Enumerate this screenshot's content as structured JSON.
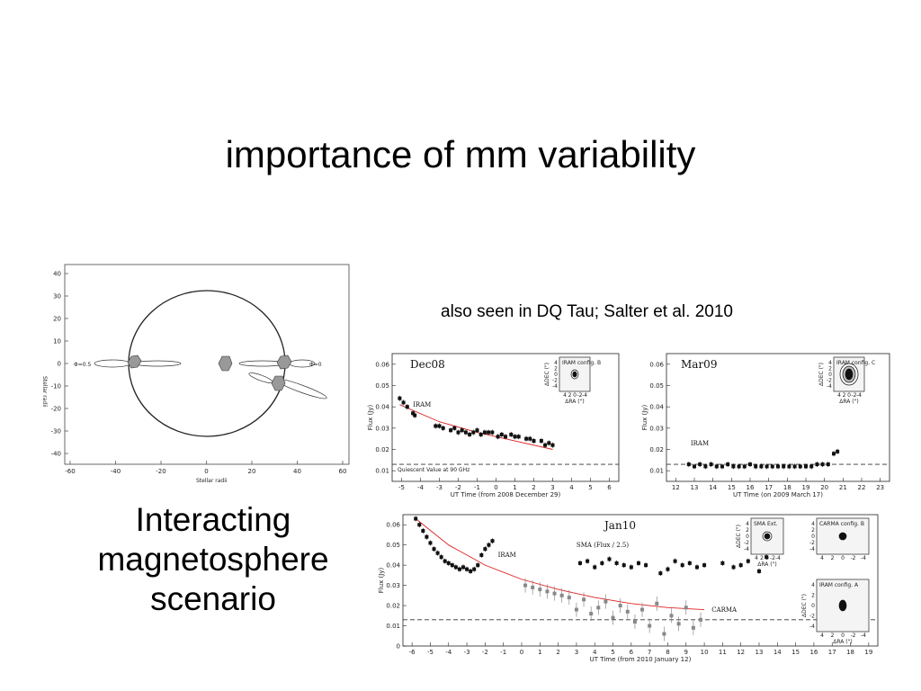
{
  "slide": {
    "title": "importance of mm variability",
    "caption": "also seen in DQ Tau; Salter et al. 2010",
    "scenario_lines": [
      "Interacting",
      "magnetosphere",
      "scenario"
    ]
  },
  "diagram": {
    "ylabel": "Stellar radii",
    "xlabel": "Stellar radii",
    "xticks": [
      "-60",
      "-40",
      "-20",
      "0",
      "20",
      "40",
      "60"
    ],
    "yticks": [
      "40",
      "30",
      "20",
      "10",
      "0",
      "-10",
      "-20",
      "-30",
      "-40"
    ],
    "phase_left": "Φ=0.5",
    "phase_right": "Φ=0"
  },
  "chart_data": [
    {
      "type": "scatter",
      "title": "Dec08",
      "xlabel": "UT Time (from 2008 December 29)",
      "ylabel": "Flux (Jy)",
      "xlim": [
        -5.5,
        6.5
      ],
      "ylim": [
        0.005,
        0.065
      ],
      "xticks": [
        -5,
        -4,
        -3,
        -2,
        -1,
        0,
        1,
        2,
        3,
        4,
        5,
        6
      ],
      "yticks": [
        0.01,
        0.02,
        0.03,
        0.04,
        0.05,
        0.06
      ],
      "quiescent": 0.013,
      "quiescent_label": "Quiescent Value at 90 GHz",
      "series": [
        {
          "name": "IRAM",
          "x": [
            -5.1,
            -4.9,
            -4.7,
            -4.4,
            -4.3,
            -3.2,
            -3.0,
            -2.8,
            -2.4,
            -2.2,
            -2.0,
            -1.8,
            -1.6,
            -1.4,
            -1.2,
            -1.0,
            -0.8,
            -0.6,
            -0.4,
            -0.2,
            0.1,
            0.3,
            0.5,
            0.8,
            1.0,
            1.2,
            1.6,
            1.8,
            2.0,
            2.4,
            2.6,
            2.8,
            3.0
          ],
          "y": [
            0.044,
            0.042,
            0.04,
            0.037,
            0.036,
            0.031,
            0.031,
            0.03,
            0.029,
            0.03,
            0.028,
            0.029,
            0.028,
            0.027,
            0.028,
            0.029,
            0.027,
            0.028,
            0.028,
            0.028,
            0.026,
            0.027,
            0.026,
            0.027,
            0.026,
            0.026,
            0.025,
            0.025,
            0.024,
            0.024,
            0.022,
            0.023,
            0.022
          ]
        }
      ],
      "fit": {
        "x": [
          -5.1,
          -3,
          -1,
          1,
          3
        ],
        "y": [
          0.041,
          0.033,
          0.028,
          0.024,
          0.02
        ]
      },
      "inset": {
        "label": "IRAM config. B",
        "xlabel": "ΔRA (\")",
        "ylabel": "ΔDEC (\")",
        "ticks": [
          "4",
          "2",
          "0",
          "-2",
          "-4"
        ]
      }
    },
    {
      "type": "scatter",
      "title": "Mar09",
      "xlabel": "UT Time (on 2009 March 17)",
      "ylabel": "Flux (Jy)",
      "xlim": [
        11.5,
        23.5
      ],
      "ylim": [
        0.005,
        0.065
      ],
      "xticks": [
        12,
        13,
        14,
        15,
        16,
        17,
        18,
        19,
        20,
        21,
        22,
        23
      ],
      "yticks": [
        0.01,
        0.02,
        0.03,
        0.04,
        0.05,
        0.06
      ],
      "quiescent": 0.013,
      "series": [
        {
          "name": "IRAM",
          "x": [
            12.7,
            13.0,
            13.3,
            13.6,
            13.9,
            14.2,
            14.5,
            14.8,
            15.1,
            15.4,
            15.7,
            16.0,
            16.3,
            16.6,
            16.9,
            17.2,
            17.5,
            17.8,
            18.1,
            18.4,
            18.7,
            19.0,
            19.3,
            19.6,
            19.9,
            20.2,
            20.5,
            20.7
          ],
          "y": [
            0.013,
            0.012,
            0.013,
            0.012,
            0.013,
            0.012,
            0.012,
            0.013,
            0.012,
            0.012,
            0.012,
            0.013,
            0.012,
            0.012,
            0.012,
            0.012,
            0.012,
            0.012,
            0.012,
            0.012,
            0.012,
            0.012,
            0.012,
            0.013,
            0.013,
            0.013,
            0.018,
            0.019
          ]
        }
      ],
      "inset": {
        "label": "IRAM config. C",
        "xlabel": "ΔRA (\")",
        "ylabel": "ΔDEC (\")",
        "ticks": [
          "4",
          "2",
          "0",
          "-2",
          "-4"
        ]
      }
    },
    {
      "type": "scatter",
      "title": "Jan10",
      "xlabel": "UT Time (from 2010 January 12)",
      "ylabel": "Flux (Jy)",
      "xlim": [
        -6.5,
        19.5
      ],
      "ylim": [
        0,
        0.065
      ],
      "xticks": [
        -6,
        -5,
        -4,
        -3,
        -2,
        -1,
        0,
        1,
        2,
        3,
        4,
        5,
        6,
        7,
        8,
        9,
        10,
        11,
        12,
        13,
        14,
        15,
        16,
        17,
        18,
        19
      ],
      "yticks": [
        0,
        0.01,
        0.02,
        0.03,
        0.04,
        0.05,
        0.06
      ],
      "quiescent": 0.013,
      "series": [
        {
          "name": "IRAM",
          "x": [
            -5.8,
            -5.6,
            -5.4,
            -5.2,
            -5.0,
            -4.8,
            -4.6,
            -4.4,
            -4.2,
            -4.0,
            -3.8,
            -3.6,
            -3.4,
            -3.2,
            -3.0,
            -2.8,
            -2.6,
            -2.4,
            -2.2,
            -2.0,
            -1.8,
            -1.6
          ],
          "y": [
            0.063,
            0.06,
            0.057,
            0.054,
            0.051,
            0.048,
            0.046,
            0.044,
            0.042,
            0.041,
            0.04,
            0.039,
            0.038,
            0.039,
            0.038,
            0.037,
            0.038,
            0.04,
            0.045,
            0.048,
            0.05,
            0.052
          ]
        },
        {
          "name": "SMA (Flux / 2.5)",
          "x": [
            3.2,
            3.6,
            4.0,
            4.4,
            4.8,
            5.2,
            5.6,
            6.0,
            6.4,
            6.8,
            7.6,
            8.0,
            8.4,
            8.8,
            9.2,
            9.6,
            10.0,
            11.0,
            11.6,
            12.0,
            12.4,
            13.0,
            13.4
          ],
          "y": [
            0.041,
            0.042,
            0.039,
            0.041,
            0.043,
            0.041,
            0.04,
            0.039,
            0.041,
            0.04,
            0.036,
            0.038,
            0.042,
            0.04,
            0.041,
            0.039,
            0.04,
            0.041,
            0.039,
            0.04,
            0.042,
            0.037,
            0.044
          ]
        },
        {
          "name": "CARMA",
          "x": [
            0.2,
            0.6,
            1.0,
            1.4,
            1.8,
            2.2,
            2.6,
            3.0,
            3.4,
            3.8,
            4.2,
            4.6,
            5.0,
            5.4,
            5.8,
            6.2,
            6.6,
            7.0,
            7.4,
            7.8,
            8.2,
            8.6,
            9.0,
            9.4,
            9.8
          ],
          "y": [
            0.03,
            0.029,
            0.028,
            0.027,
            0.026,
            0.025,
            0.024,
            0.018,
            0.023,
            0.016,
            0.019,
            0.022,
            0.014,
            0.02,
            0.017,
            0.012,
            0.018,
            0.01,
            0.021,
            0.006,
            0.015,
            0.011,
            0.019,
            0.009,
            0.013
          ]
        }
      ],
      "fit": {
        "x": [
          -5.8,
          -4,
          -2,
          0,
          2,
          4,
          6,
          8,
          10
        ],
        "y": [
          0.063,
          0.05,
          0.04,
          0.033,
          0.028,
          0.024,
          0.021,
          0.019,
          0.018
        ]
      },
      "insets": [
        {
          "label": "SMA Ext.",
          "xlabel": "ΔRA (\")",
          "ylabel": "ΔDEC (\")",
          "ticks": [
            "4",
            "2",
            "0",
            "-2",
            "-4"
          ]
        },
        {
          "label": "CARMA config. B",
          "ticks": [
            "4",
            "2",
            "0",
            "-2",
            "-4"
          ]
        },
        {
          "label": "IRAM config. A",
          "xlabel": "ΔRA (\")",
          "ylabel": "ΔDEC (\")",
          "ticks": [
            "4",
            "2",
            "0",
            "-2",
            "-4"
          ]
        }
      ]
    }
  ]
}
